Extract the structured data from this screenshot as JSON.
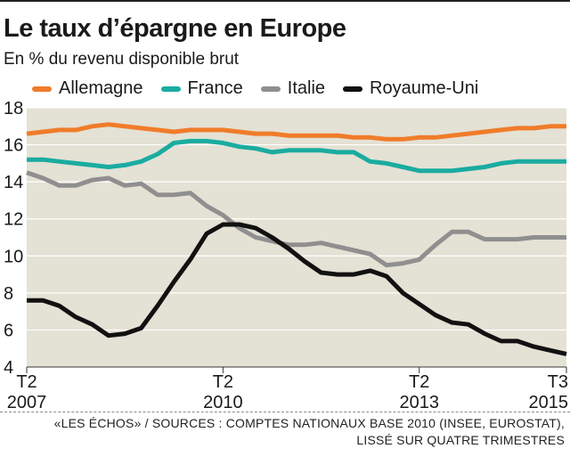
{
  "header": {
    "title": "Le taux d’épargne en Europe",
    "subtitle": "En % du revenu disponible brut"
  },
  "footer": {
    "line1": "«LES ÉCHOS» / SOURCES : COMPTES NATIONAUX BASE 2010 (INSEE, EUROSTAT),",
    "line2": "LISSÉ SUR QUATRE TRIMESTRES"
  },
  "chart_data": {
    "type": "line",
    "title": "Le taux d’épargne en Europe",
    "subtitle": "En % du revenu disponible brut",
    "xlabel": "",
    "ylabel": "",
    "ylim": [
      4,
      18
    ],
    "yticks": [
      4,
      6,
      8,
      10,
      12,
      14,
      16,
      18
    ],
    "grid": true,
    "legend": "top",
    "background": "#e4e1d5",
    "x_tick_labels": [
      {
        "quarter": "T2",
        "year": "2007"
      },
      {
        "quarter": "T2",
        "year": "2010"
      },
      {
        "quarter": "T2",
        "year": "2013"
      },
      {
        "quarter": "T3",
        "year": "2015"
      }
    ],
    "x_ticks_quarters": [
      "2007-T2",
      "2010-T2",
      "2013-T2",
      "2015-T3"
    ],
    "x": [
      "2007-T2",
      "2007-T3",
      "2007-T4",
      "2008-T1",
      "2008-T2",
      "2008-T3",
      "2008-T4",
      "2009-T1",
      "2009-T2",
      "2009-T3",
      "2009-T4",
      "2010-T1",
      "2010-T2",
      "2010-T3",
      "2010-T4",
      "2011-T1",
      "2011-T2",
      "2011-T3",
      "2011-T4",
      "2012-T1",
      "2012-T2",
      "2012-T3",
      "2012-T4",
      "2013-T1",
      "2013-T2",
      "2013-T3",
      "2013-T4",
      "2014-T1",
      "2014-T2",
      "2014-T3",
      "2014-T4",
      "2015-T1",
      "2015-T2",
      "2015-T3"
    ],
    "series": [
      {
        "name": "Allemagne",
        "color": "#f07c2a",
        "values": [
          16.6,
          16.7,
          16.8,
          16.8,
          17.0,
          17.1,
          17.0,
          16.9,
          16.8,
          16.7,
          16.8,
          16.8,
          16.8,
          16.7,
          16.6,
          16.6,
          16.5,
          16.5,
          16.5,
          16.5,
          16.4,
          16.4,
          16.3,
          16.3,
          16.4,
          16.4,
          16.5,
          16.6,
          16.7,
          16.8,
          16.9,
          16.9,
          17.0,
          17.0
        ]
      },
      {
        "name": "France",
        "color": "#1aaca0",
        "values": [
          15.2,
          15.2,
          15.1,
          15.0,
          14.9,
          14.8,
          14.9,
          15.1,
          15.5,
          16.1,
          16.2,
          16.2,
          16.1,
          15.9,
          15.8,
          15.6,
          15.7,
          15.7,
          15.7,
          15.6,
          15.6,
          15.1,
          15.0,
          14.8,
          14.6,
          14.6,
          14.6,
          14.7,
          14.8,
          15.0,
          15.1,
          15.1,
          15.1,
          15.1
        ]
      },
      {
        "name": "Italie",
        "color": "#8f8f8f",
        "values": [
          14.5,
          14.2,
          13.8,
          13.8,
          14.1,
          14.2,
          13.8,
          13.9,
          13.3,
          13.3,
          13.4,
          12.7,
          12.2,
          11.5,
          11.0,
          10.8,
          10.6,
          10.6,
          10.7,
          10.5,
          10.3,
          10.1,
          9.5,
          9.6,
          9.8,
          10.6,
          11.3,
          11.3,
          10.9,
          10.9,
          10.9,
          11.0,
          11.0,
          11.0
        ]
      },
      {
        "name": "Royaume-Uni",
        "color": "#111111",
        "values": [
          7.6,
          7.6,
          7.3,
          6.7,
          6.3,
          5.7,
          5.8,
          6.1,
          7.3,
          8.6,
          9.8,
          11.2,
          11.7,
          11.7,
          11.5,
          11.0,
          10.4,
          9.7,
          9.1,
          9.0,
          9.0,
          9.2,
          8.9,
          8.0,
          7.4,
          6.8,
          6.4,
          6.3,
          5.8,
          5.4,
          5.4,
          5.1,
          4.9,
          4.7
        ]
      }
    ]
  }
}
